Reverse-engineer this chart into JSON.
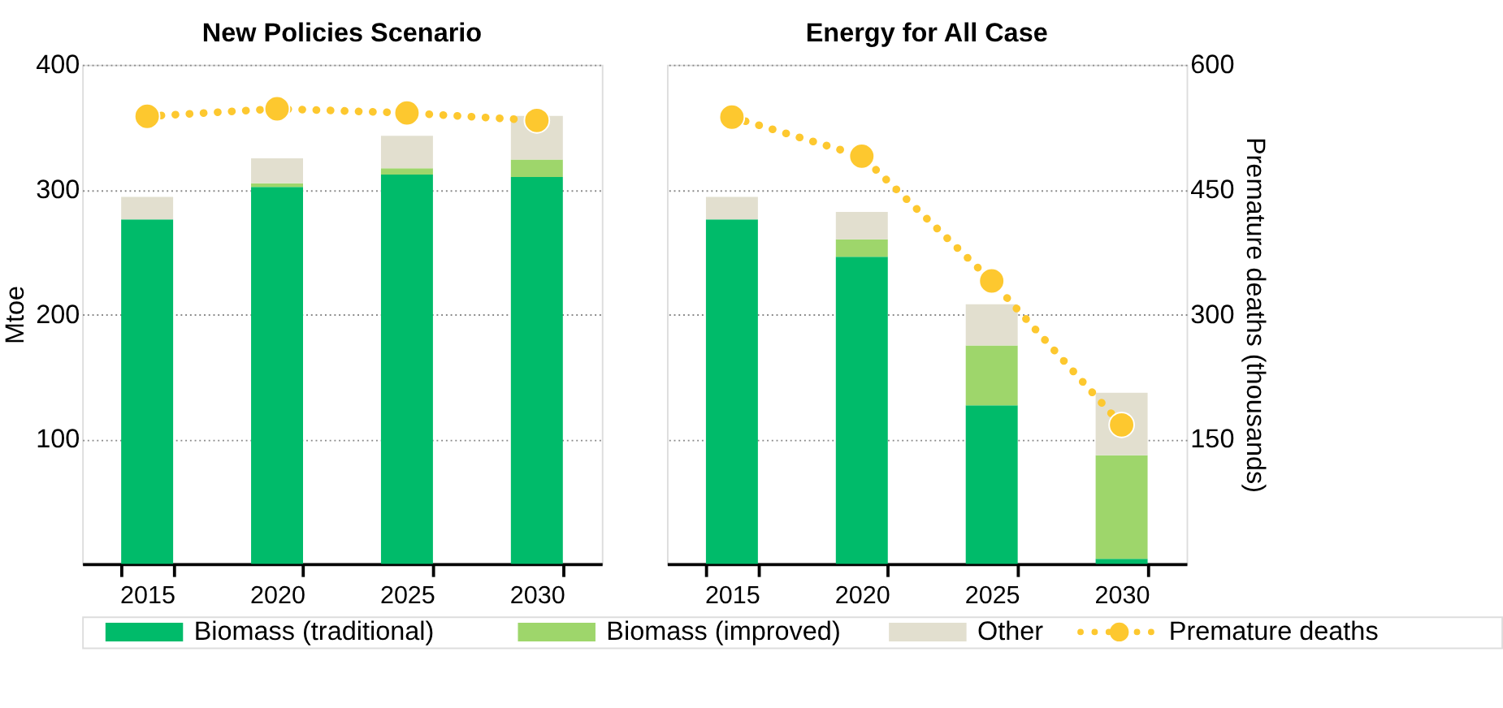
{
  "chart_data": [
    {
      "type": "bar",
      "title": "New Policies Scenario",
      "ylabel": "Mtoe",
      "categories": [
        "2015",
        "2020",
        "2025",
        "2030"
      ],
      "stacked": true,
      "ylim": [
        0,
        400
      ],
      "yticks": [
        100,
        200,
        300,
        400
      ],
      "y2lim": [
        0,
        600
      ],
      "grid": "y",
      "legend": "bottom",
      "series": [
        {
          "name": "Biomass (traditional)",
          "color": "#00bb6a",
          "values": [
            276,
            302,
            312,
            310
          ]
        },
        {
          "name": "Biomass (improved)",
          "color": "#9ed66b",
          "values": [
            0,
            3,
            5,
            14
          ]
        },
        {
          "name": "Other",
          "color": "#e2dfcf",
          "values": [
            18,
            20,
            26,
            35
          ]
        },
        {
          "name": "Premature deaths",
          "type": "line",
          "axis": "y2",
          "marker": "circle",
          "line_style": "dotted",
          "color": "#fdc82f",
          "values": [
            538,
            547,
            542,
            533
          ]
        }
      ]
    },
    {
      "type": "bar",
      "title": "Energy for All Case",
      "y2label": "Premature deaths (thousands)",
      "categories": [
        "2015",
        "2020",
        "2025",
        "2030"
      ],
      "stacked": true,
      "ylim": [
        0,
        400
      ],
      "y2lim": [
        0,
        600
      ],
      "y2ticks": [
        150,
        300,
        450,
        600
      ],
      "grid": "y",
      "series": [
        {
          "color": "#00bb6a",
          "values": [
            276,
            246,
            127,
            4
          ]
        },
        {
          "color": "#9ed66b",
          "values": [
            0,
            14,
            48,
            83
          ]
        },
        {
          "color": "#e2dfcf",
          "values": [
            18,
            22,
            33,
            50
          ]
        },
        {
          "type": "line",
          "axis": "y2",
          "marker": "circle",
          "line_style": "dotted",
          "color": "#fdc82f",
          "values": [
            537,
            490,
            340,
            167
          ]
        }
      ]
    }
  ]
}
